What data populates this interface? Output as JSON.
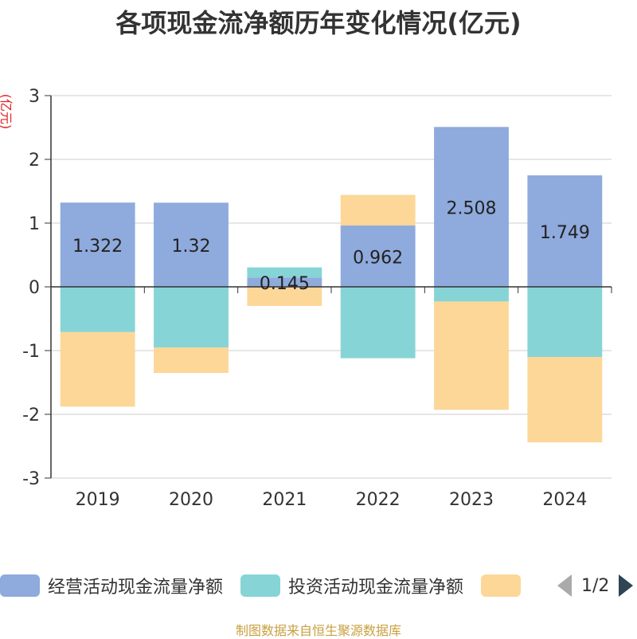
{
  "chart_data": {
    "type": "bar",
    "stacked": true,
    "title": "各项现金流净额历年变化情况(亿元)",
    "ylabel": "(亿元)",
    "categories": [
      "2019",
      "2020",
      "2021",
      "2022",
      "2023",
      "2024"
    ],
    "ylim": [
      -3,
      3
    ],
    "yticks": [
      "3",
      "2",
      "1",
      "0",
      "-1",
      "-2",
      "-3"
    ],
    "grid": true,
    "series": [
      {
        "name": "经营活动现金流量净额",
        "color": "#8faadc",
        "values": [
          1.322,
          1.32,
          0.145,
          0.962,
          2.508,
          1.749
        ],
        "labels": [
          "1.322",
          "1.32",
          "0.145",
          "0.962",
          "2.508",
          "1.749"
        ]
      },
      {
        "name": "投资活动现金流量净额",
        "color": "#87d4d6",
        "values": [
          -0.71,
          -0.95,
          0.16,
          -1.12,
          -0.23,
          -1.1
        ]
      },
      {
        "name": "",
        "color": "#fcd798",
        "values": [
          -1.17,
          -0.4,
          -0.3,
          0.48,
          -1.7,
          -1.34
        ]
      }
    ]
  },
  "legend": {
    "page": "1/2"
  },
  "footer": {
    "source": "制图数据来自恒生聚源数据库"
  }
}
